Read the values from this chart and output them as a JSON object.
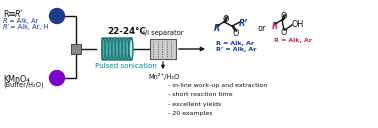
{
  "bg_color": "#ffffff",
  "color_blue": "#1a3a8c",
  "color_teal": "#008b8b",
  "color_crimson": "#b03070",
  "color_black": "#111111",
  "color_circle_blue": "#1e3a8a",
  "color_circle_purple": "#7b00c8",
  "color_coil_fill": "#4dada8",
  "color_coil_edge": "#1a7070",
  "color_gray_mixer": "#888888",
  "color_sep_fill": "#cccccc",
  "color_sep_edge": "#555555",
  "bullets": [
    "- in-line work-up and extraction",
    "- short reaction time",
    "- excellent yields",
    "- 20 examples"
  ]
}
